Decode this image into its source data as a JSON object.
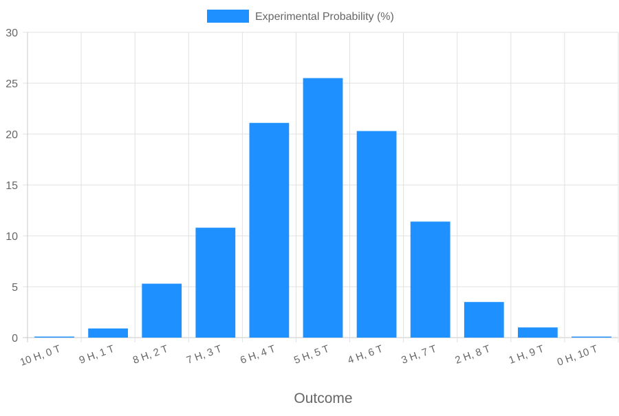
{
  "chart_data": {
    "type": "bar",
    "categories": [
      "10 H, 0 T",
      "9 H, 1 T",
      "8 H, 2 T",
      "7 H, 3 T",
      "6 H, 4 T",
      "5 H, 5 T",
      "4 H, 6 T",
      "3 H, 7 T",
      "2 H, 8 T",
      "1 H, 9 T",
      "0 H, 10 T"
    ],
    "series": [
      {
        "name": "Experimental Probability (%)",
        "values": [
          0.1,
          0.9,
          5.3,
          10.8,
          21.1,
          25.5,
          20.3,
          11.4,
          3.5,
          1.0,
          0.1
        ],
        "color": "#1e90ff"
      }
    ],
    "xlabel": "Outcome",
    "ylabel": "",
    "ylim": [
      0,
      30
    ],
    "yticks": [
      0,
      5,
      10,
      15,
      20,
      25,
      30
    ],
    "grid": true,
    "legend_position": "top-center"
  }
}
